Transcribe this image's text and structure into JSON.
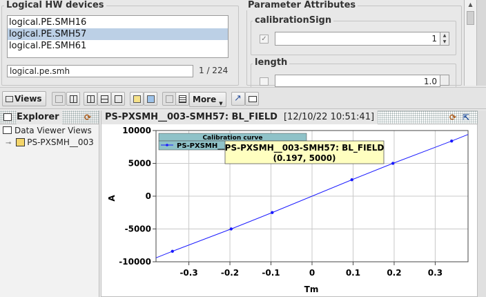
{
  "hw_panel": {
    "title": "Logical HW devices",
    "devices": [
      {
        "label": "logical.PE.SMH16",
        "selected": false
      },
      {
        "label": "logical.PE.SMH57",
        "selected": true
      },
      {
        "label": "logical.PE.SMH61",
        "selected": false
      }
    ],
    "filter_value": "logical.pe.smh",
    "count": "1 / 224"
  },
  "params_panel": {
    "title": "Parameter Attributes",
    "params": [
      {
        "name": "calibrationSign",
        "value": "1"
      },
      {
        "name": "length",
        "value": "1.0"
      }
    ]
  },
  "toolbar": {
    "views_label": "Views",
    "more_label": "More"
  },
  "explorer": {
    "title": "Explorer",
    "tree": [
      {
        "label": "Data Viewer Views",
        "icon": "views-folder-icon"
      },
      {
        "label": "PS-PXSMH__003",
        "icon": "magnifier-icon"
      }
    ]
  },
  "viewer": {
    "title": "PS-PXSMH__003-SMH57: BL_FIELD",
    "timestamp": "[12/10/22 10:51:41]",
    "legend_title": "Calibration curve",
    "legend_entry": "PS-PXSMH__003-SMH57: BL_FIELD",
    "tooltip_line1": "PS-PXSMH__003-SMH57: BL_FIELD",
    "tooltip_line2": "(0.197, 5000)"
  },
  "chart_data": {
    "type": "line",
    "xlabel": "Tm",
    "ylabel": "A",
    "xlim": [
      -0.38,
      0.38
    ],
    "ylim": [
      -10000,
      10000
    ],
    "xticks": [
      -0.3,
      -0.2,
      -0.1,
      0,
      0.1,
      0.2,
      0.3
    ],
    "yticks": [
      -10000,
      -5000,
      0,
      5000,
      10000
    ],
    "grid": true,
    "series": [
      {
        "name": "PS-PXSMH__003-SMH57: BL_FIELD",
        "color": "#1a1aff",
        "x": [
          -0.38,
          -0.34,
          -0.197,
          -0.097,
          0.097,
          0.197,
          0.34,
          0.38
        ],
        "y": [
          -9400,
          -8400,
          -5000,
          -2500,
          2500,
          5000,
          8400,
          9400
        ],
        "markers": [
          false,
          true,
          true,
          true,
          true,
          true,
          true,
          false
        ]
      }
    ]
  }
}
